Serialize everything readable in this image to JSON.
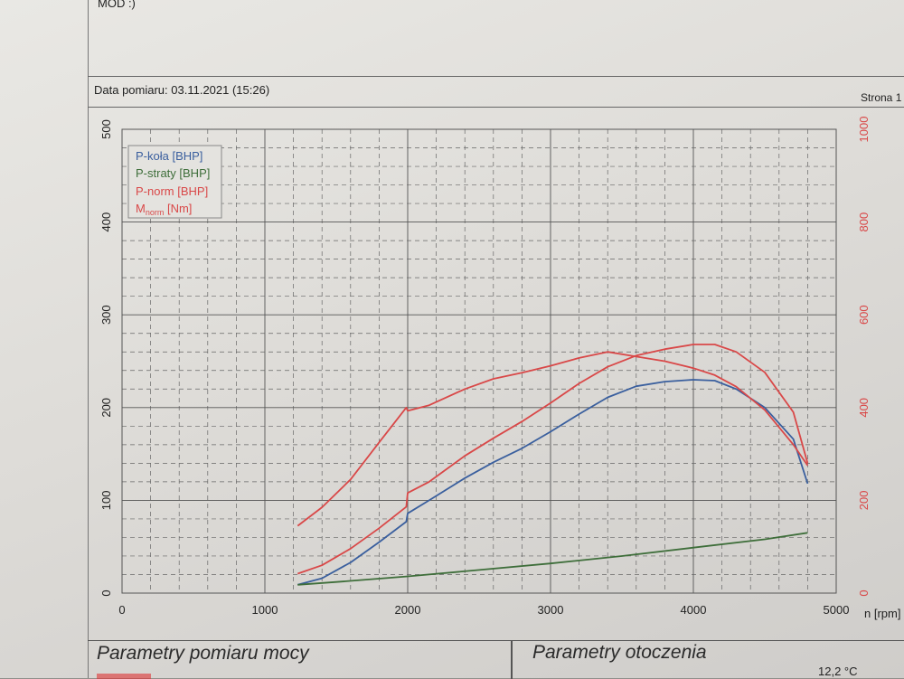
{
  "header": {
    "mod_text": "MOD :)",
    "date_label": "Data pomiaru: 03.11.2021 (15:26)",
    "page_label": "Strona 1"
  },
  "legend": {
    "p_kola": "P-koła [BHP]",
    "p_straty": "P-straty [BHP]",
    "p_norm": "P-norm [BHP]",
    "m_norm_main": "M",
    "m_norm_sub": "norm",
    "m_norm_unit": " [Nm]"
  },
  "footer": {
    "left_title": "Parametry pomiaru mocy",
    "right_title": "Parametry otoczenia",
    "temp_value": "12,2  °C"
  },
  "colors": {
    "p_kola": "#3a5f9e",
    "p_straty": "#3e6e3a",
    "p_norm": "#d94848",
    "m_norm": "#d94848",
    "right_axis": "#d94848"
  },
  "chart_data": {
    "type": "line",
    "xlabel": "n [rpm]",
    "x_ticks": [
      "0",
      "1000",
      "2000",
      "3000",
      "4000",
      "5000"
    ],
    "y_left_ticks": [
      "0",
      "100",
      "200",
      "300",
      "400",
      "500"
    ],
    "y_right_ticks": [
      "0",
      "200",
      "400",
      "600",
      "800",
      "1000"
    ],
    "xlim": [
      0,
      5000
    ],
    "ylim_left": [
      0,
      500
    ],
    "ylim_right": [
      0,
      1000
    ],
    "grid": true,
    "legend_position": "top-left",
    "series": [
      {
        "name": "P-koła [BHP]",
        "axis": "left",
        "x": [
          1230,
          1400,
          1600,
          1800,
          1990,
          2000,
          2150,
          2400,
          2600,
          2800,
          3000,
          3200,
          3400,
          3600,
          3800,
          4000,
          4150,
          4300,
          4500,
          4700,
          4800
        ],
        "y": [
          9,
          16,
          33,
          55,
          77,
          86,
          100,
          124,
          141,
          156,
          174,
          193,
          211,
          223,
          228,
          230,
          229,
          220,
          200,
          166,
          118
        ]
      },
      {
        "name": "P-straty [BHP]",
        "axis": "left",
        "x": [
          1230,
          1500,
          2000,
          2500,
          3000,
          3500,
          4000,
          4500,
          4800
        ],
        "y": [
          9,
          12,
          18,
          25,
          32,
          40,
          49,
          58,
          65
        ]
      },
      {
        "name": "P-norm [BHP]",
        "axis": "left",
        "x": [
          1230,
          1400,
          1600,
          1800,
          1990,
          2000,
          2150,
          2400,
          2600,
          2800,
          3000,
          3200,
          3400,
          3600,
          3800,
          4000,
          4150,
          4300,
          4500,
          4700,
          4800
        ],
        "y": [
          21,
          30,
          48,
          70,
          93,
          108,
          120,
          148,
          167,
          185,
          205,
          226,
          244,
          256,
          263,
          268,
          268,
          260,
          238,
          195,
          140
        ]
      },
      {
        "name": "Mnorm [Nm]",
        "axis": "right",
        "x": [
          1230,
          1400,
          1600,
          1800,
          1990,
          2000,
          2150,
          2400,
          2600,
          2800,
          3000,
          3200,
          3400,
          3600,
          3800,
          4000,
          4150,
          4300,
          4500,
          4700,
          4800
        ],
        "y": [
          145,
          185,
          245,
          325,
          400,
          393,
          405,
          440,
          462,
          475,
          490,
          507,
          520,
          510,
          500,
          485,
          470,
          445,
          395,
          320,
          275
        ]
      }
    ]
  }
}
